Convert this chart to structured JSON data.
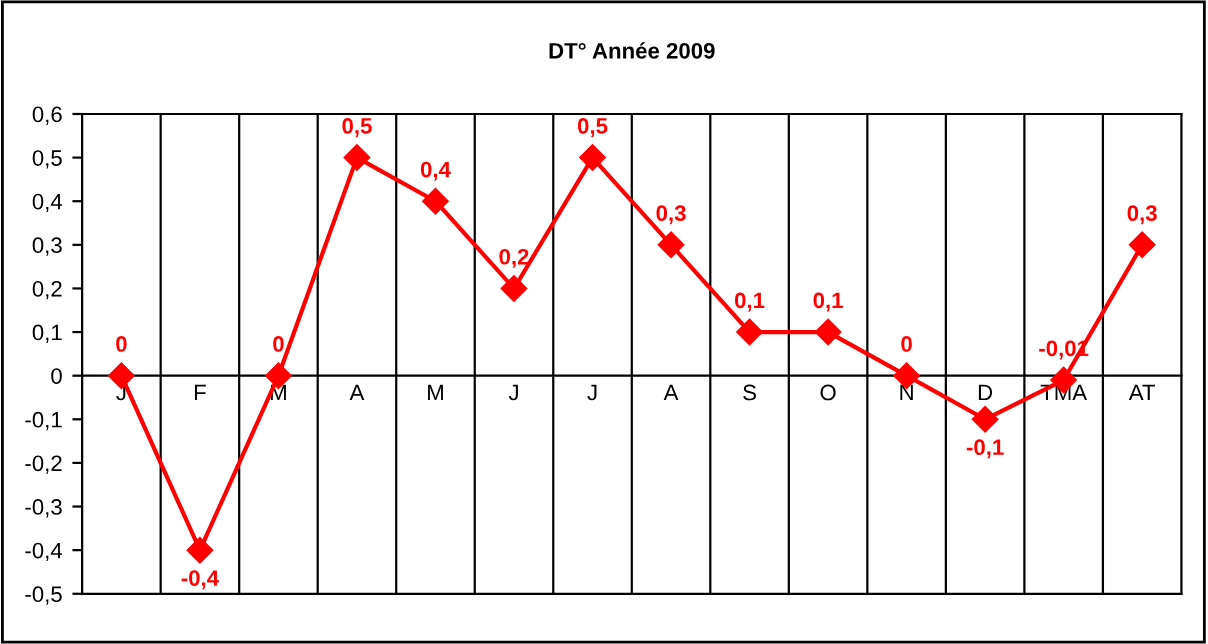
{
  "chart_data": {
    "type": "line",
    "title": "DT° Année 2009",
    "categories": [
      "J",
      "F",
      "M",
      "A",
      "M",
      "J",
      "J",
      "A",
      "S",
      "O",
      "N",
      "D",
      "TMA",
      "AT"
    ],
    "series": [
      {
        "color": "#ff0000",
        "values": [
          0,
          -0.4,
          0,
          0.5,
          0.4,
          0.2,
          0.5,
          0.3,
          0.1,
          0.1,
          0,
          -0.1,
          -0.01,
          0.3
        ],
        "value_labels": [
          "0",
          "-0,4",
          "0",
          "0,5",
          "0,4",
          "0,2",
          "0,5",
          "0,3",
          "0,1",
          "0,1",
          "0",
          "-0,1",
          "-0,01",
          "0,3"
        ]
      }
    ],
    "ylim": [
      -0.5,
      0.6
    ],
    "yticks": [
      {
        "value": -0.5,
        "label": "-0,5"
      },
      {
        "value": -0.4,
        "label": "-0,4"
      },
      {
        "value": -0.3,
        "label": "-0,3"
      },
      {
        "value": -0.2,
        "label": "-0,2"
      },
      {
        "value": -0.1,
        "label": "-0,1"
      },
      0,
      {
        "value": 0.1,
        "label": "0,1"
      },
      {
        "value": 0.2,
        "label": "0,2"
      },
      {
        "value": 0.3,
        "label": "0,3"
      },
      {
        "value": 0.4,
        "label": "0,4"
      },
      {
        "value": 0.5,
        "label": "0,5"
      },
      {
        "value": 0.6,
        "label": "0,6"
      }
    ],
    "grid": "x",
    "marker": "diamond",
    "line_style": "solid",
    "legend": false
  }
}
